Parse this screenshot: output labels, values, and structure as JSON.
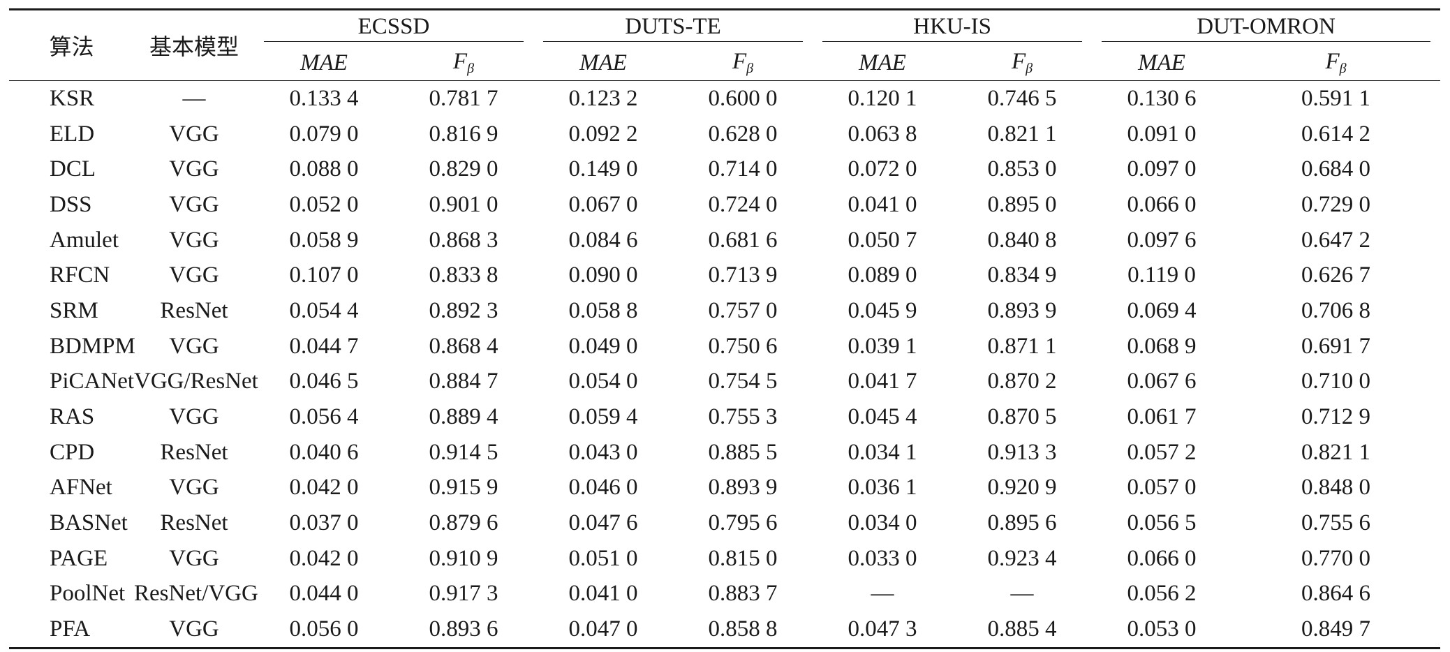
{
  "table": {
    "head": {
      "algorithm": "算法",
      "base_model": "基本模型",
      "datasets": [
        "ECSSD",
        "DUTS-TE",
        "HKU-IS",
        "DUT-OMRON"
      ],
      "metric_mae": "MAE",
      "metric_f": "F",
      "metric_f_sub": "β"
    },
    "rows": [
      {
        "alg": "KSR",
        "model": "—",
        "v": [
          "0.133 4",
          "0.781 7",
          "0.123 2",
          "0.600 0",
          "0.120 1",
          "0.746 5",
          "0.130 6",
          "0.591 1"
        ]
      },
      {
        "alg": "ELD",
        "model": "VGG",
        "v": [
          "0.079 0",
          "0.816 9",
          "0.092 2",
          "0.628 0",
          "0.063 8",
          "0.821 1",
          "0.091 0",
          "0.614 2"
        ]
      },
      {
        "alg": "DCL",
        "model": "VGG",
        "v": [
          "0.088 0",
          "0.829 0",
          "0.149 0",
          "0.714 0",
          "0.072 0",
          "0.853 0",
          "0.097 0",
          "0.684 0"
        ]
      },
      {
        "alg": "DSS",
        "model": "VGG",
        "v": [
          "0.052 0",
          "0.901 0",
          "0.067 0",
          "0.724 0",
          "0.041 0",
          "0.895 0",
          "0.066 0",
          "0.729 0"
        ]
      },
      {
        "alg": "Amulet",
        "model": "VGG",
        "v": [
          "0.058 9",
          "0.868 3",
          "0.084 6",
          "0.681 6",
          "0.050 7",
          "0.840 8",
          "0.097 6",
          "0.647 2"
        ]
      },
      {
        "alg": "RFCN",
        "model": "VGG",
        "v": [
          "0.107 0",
          "0.833 8",
          "0.090 0",
          "0.713 9",
          "0.089 0",
          "0.834 9",
          "0.119 0",
          "0.626 7"
        ]
      },
      {
        "alg": "SRM",
        "model": "ResNet",
        "v": [
          "0.054 4",
          "0.892 3",
          "0.058 8",
          "0.757 0",
          "0.045 9",
          "0.893 9",
          "0.069 4",
          "0.706 8"
        ]
      },
      {
        "alg": "BDMPM",
        "model": "VGG",
        "v": [
          "0.044 7",
          "0.868 4",
          "0.049 0",
          "0.750 6",
          "0.039 1",
          "0.871 1",
          "0.068 9",
          "0.691 7"
        ]
      },
      {
        "alg": "PiCANet",
        "model": "VGG/ResNet",
        "v": [
          "0.046 5",
          "0.884 7",
          "0.054 0",
          "0.754 5",
          "0.041 7",
          "0.870 2",
          "0.067 6",
          "0.710 0"
        ]
      },
      {
        "alg": "RAS",
        "model": "VGG",
        "v": [
          "0.056 4",
          "0.889 4",
          "0.059 4",
          "0.755 3",
          "0.045 4",
          "0.870 5",
          "0.061 7",
          "0.712 9"
        ]
      },
      {
        "alg": "CPD",
        "model": "ResNet",
        "v": [
          "0.040 6",
          "0.914 5",
          "0.043 0",
          "0.885 5",
          "0.034 1",
          "0.913 3",
          "0.057 2",
          "0.821 1"
        ]
      },
      {
        "alg": "AFNet",
        "model": "VGG",
        "v": [
          "0.042 0",
          "0.915 9",
          "0.046 0",
          "0.893 9",
          "0.036 1",
          "0.920 9",
          "0.057 0",
          "0.848 0"
        ]
      },
      {
        "alg": "BASNet",
        "model": "ResNet",
        "v": [
          "0.037 0",
          "0.879 6",
          "0.047 6",
          "0.795 6",
          "0.034 0",
          "0.895 6",
          "0.056 5",
          "0.755 6"
        ]
      },
      {
        "alg": "PAGE",
        "model": "VGG",
        "v": [
          "0.042 0",
          "0.910 9",
          "0.051 0",
          "0.815 0",
          "0.033 0",
          "0.923 4",
          "0.066 0",
          "0.770 0"
        ]
      },
      {
        "alg": "PoolNet",
        "model": "ResNet/VGG",
        "v": [
          "0.044 0",
          "0.917 3",
          "0.041 0",
          "0.883 7",
          "—",
          "—",
          "0.056 2",
          "0.864 6"
        ]
      },
      {
        "alg": "PFA",
        "model": "VGG",
        "v": [
          "0.056 0",
          "0.893 6",
          "0.047 0",
          "0.858 8",
          "0.047 3",
          "0.885 4",
          "0.053 0",
          "0.849 7"
        ]
      }
    ]
  }
}
